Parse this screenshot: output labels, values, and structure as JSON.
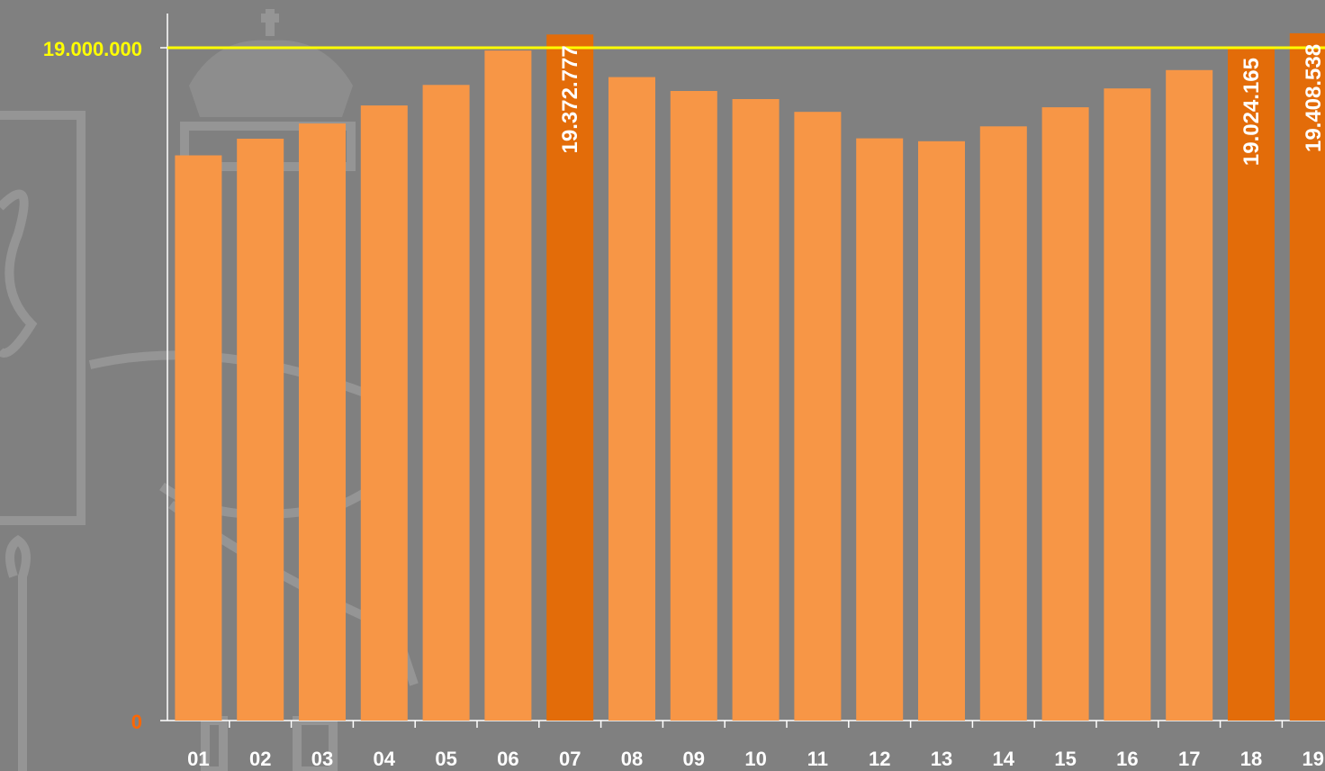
{
  "chart_data": {
    "type": "bar",
    "title": "",
    "xlabel": "",
    "ylabel": "",
    "categories": [
      "01",
      "02",
      "03",
      "04",
      "05",
      "06",
      "07",
      "08",
      "09",
      "10",
      "11",
      "12",
      "13",
      "14",
      "15",
      "16",
      "17",
      "18",
      "19"
    ],
    "values": [
      15960000,
      16430000,
      16860000,
      17370000,
      17950000,
      18920000,
      19372777,
      18170000,
      17780000,
      17550000,
      17190000,
      16440000,
      16360000,
      16780000,
      17320000,
      17850000,
      18370000,
      19024165,
      19408538
    ],
    "highlighted": [
      "07",
      "18",
      "19"
    ],
    "data_labels": {
      "07": "19.372.777",
      "18": "19.024.165",
      "19": "19.408.538"
    },
    "y_tick_labels": [
      "0",
      "19.000.000"
    ],
    "reference_line": {
      "value": 19000000,
      "label": "19.000.000",
      "color": "#ffff00"
    },
    "ylim": [
      0,
      19000000
    ],
    "colors": {
      "bar": "#f79646",
      "highlight": "#e36c09",
      "reference": "#ffff00",
      "zero_label": "#ff6600",
      "axis": "#ffffff",
      "background": "#808080"
    },
    "background_watermark": "coat-of-arms-emblem"
  }
}
